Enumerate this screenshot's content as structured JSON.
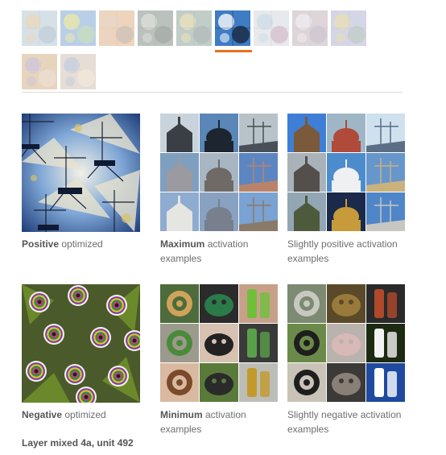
{
  "strip": {
    "thumbnails": [
      {
        "name": "unit-thumb-1",
        "colors": [
          "#9fb8c8",
          "#c9a46a",
          "#6f8fa8"
        ]
      },
      {
        "name": "unit-thumb-2",
        "colors": [
          "#5a8fc9",
          "#c9c63e",
          "#7ab36b"
        ]
      },
      {
        "name": "unit-thumb-3",
        "colors": [
          "#d99a62",
          "#caa07a",
          "#8e6f5a"
        ]
      },
      {
        "name": "unit-thumb-4",
        "colors": [
          "#5f6e63",
          "#a9b0a2",
          "#2e3a34"
        ]
      },
      {
        "name": "unit-thumb-5",
        "colors": [
          "#6c8d7c",
          "#c9b36a",
          "#4c5d62"
        ]
      },
      {
        "name": "unit-thumb-6",
        "colors": [
          "#3e7cc4",
          "#eef3f8",
          "#1a2740"
        ]
      },
      {
        "name": "unit-thumb-7",
        "colors": [
          "#c7ccd2",
          "#8fb2c9",
          "#9c6d8c"
        ]
      },
      {
        "name": "unit-thumb-8",
        "colors": [
          "#b39da6",
          "#d8cfd6",
          "#8a7c96"
        ]
      },
      {
        "name": "unit-thumb-9",
        "colors": [
          "#9aa0c4",
          "#c8b15b",
          "#6f8b7a"
        ]
      },
      {
        "name": "unit-thumb-10",
        "colors": [
          "#c79a62",
          "#8c7ca8",
          "#d7b39a"
        ]
      },
      {
        "name": "unit-thumb-11",
        "colors": [
          "#c6b29e",
          "#7d8fb2",
          "#e0c9a6"
        ]
      }
    ]
  },
  "positive": {
    "optimized": {
      "bold": "Positive",
      "rest": " optimized"
    },
    "maximum": {
      "bold": "Maximum",
      "rest": " activation examples"
    },
    "slightly": {
      "text": "Slightly positive activation examples"
    }
  },
  "negative": {
    "optimized": {
      "bold": "Negative",
      "rest": " optimized"
    },
    "minimum": {
      "bold": "Minimum",
      "rest": " activation examples"
    },
    "slightly": {
      "text": "Slightly negative activation examples"
    }
  },
  "layer_label": "Layer mixed 4a, unit 492",
  "colors": {
    "accent": "#e8711a",
    "divider": "#dcdcdc",
    "caption": "#6e6e6e"
  },
  "max_examples": [
    {
      "name": "max-example-1",
      "sky": "#c9d3dc",
      "fg": "#3a3f46"
    },
    {
      "name": "max-example-2",
      "sky": "#5b86b8",
      "fg": "#1d2530"
    },
    {
      "name": "max-example-3",
      "sky": "#b7c2c9",
      "fg": "#4a5058"
    },
    {
      "name": "max-example-4",
      "sky": "#7e9fc0",
      "fg": "#9a9aa0"
    },
    {
      "name": "max-example-5",
      "sky": "#a8b6c4",
      "fg": "#6f6a66"
    },
    {
      "name": "max-example-6",
      "sky": "#5c86c2",
      "fg": "#b9836a"
    },
    {
      "name": "max-example-7",
      "sky": "#8eacd0",
      "fg": "#e5e5e2"
    },
    {
      "name": "max-example-8",
      "sky": "#8aa2c2",
      "fg": "#77808c"
    },
    {
      "name": "max-example-9",
      "sky": "#7aa2d2",
      "fg": "#8a7a6a"
    }
  ],
  "slight_pos_examples": [
    {
      "name": "slight-pos-example-1",
      "sky": "#3f7ed6",
      "fg": "#7a5a3a"
    },
    {
      "name": "slight-pos-example-2",
      "sky": "#9fb6c6",
      "fg": "#b04a3a"
    },
    {
      "name": "slight-pos-example-3",
      "sky": "#cfe0ef",
      "fg": "#5b6e86"
    },
    {
      "name": "slight-pos-example-4",
      "sky": "#a9b2b8",
      "fg": "#53504c"
    },
    {
      "name": "slight-pos-example-5",
      "sky": "#4d8ccc",
      "fg": "#eef0f2"
    },
    {
      "name": "slight-pos-example-6",
      "sky": "#6796cc",
      "fg": "#c9b27e"
    },
    {
      "name": "slight-pos-example-7",
      "sky": "#93a6b4",
      "fg": "#4d5b3c"
    },
    {
      "name": "slight-pos-example-8",
      "sky": "#1b2a4a",
      "fg": "#c79a3a"
    },
    {
      "name": "slight-pos-example-9",
      "sky": "#4f86c8",
      "fg": "#c8c6c0"
    }
  ],
  "min_examples": [
    {
      "name": "min-example-1",
      "bg": "#4d6b3b",
      "fg": "#cfa35a"
    },
    {
      "name": "min-example-2",
      "bg": "#2b2b2b",
      "fg": "#2b7a4a"
    },
    {
      "name": "min-example-3",
      "bg": "#c8a08a",
      "fg": "#6fbf3a"
    },
    {
      "name": "min-example-4",
      "bg": "#9c9a8c",
      "fg": "#4a8a3a"
    },
    {
      "name": "min-example-5",
      "bg": "#d7c2b2",
      "fg": "#222222"
    },
    {
      "name": "min-example-6",
      "bg": "#3a3a3a",
      "fg": "#5aa04a"
    },
    {
      "name": "min-example-7",
      "bg": "#d9b9a0",
      "fg": "#7a4a2a"
    },
    {
      "name": "min-example-8",
      "bg": "#5a7a3a",
      "fg": "#2a2a2a"
    },
    {
      "name": "min-example-9",
      "bg": "#bdbdb8",
      "fg": "#c29a2a"
    }
  ],
  "slight_neg_examples": [
    {
      "name": "slight-neg-example-1",
      "bg": "#7d8a72",
      "fg": "#c7c9c0"
    },
    {
      "name": "slight-neg-example-2",
      "bg": "#5a4a2a",
      "fg": "#9a7a3a"
    },
    {
      "name": "slight-neg-example-3",
      "bg": "#2a2a2a",
      "fg": "#b04a2a"
    },
    {
      "name": "slight-neg-example-4",
      "bg": "#6b8a4a",
      "fg": "#1e1e1e"
    },
    {
      "name": "slight-neg-example-5",
      "bg": "#b9b3ad",
      "fg": "#d9b8b8"
    },
    {
      "name": "slight-neg-example-6",
      "bg": "#1d2a12",
      "fg": "#f2f2f2"
    },
    {
      "name": "slight-neg-example-7",
      "bg": "#c9c2b6",
      "fg": "#1e1e1e"
    },
    {
      "name": "slight-neg-example-8",
      "bg": "#3c3a38",
      "fg": "#8a7f76"
    },
    {
      "name": "slight-neg-example-9",
      "bg": "#1f4aa0",
      "fg": "#ffffff"
    }
  ]
}
